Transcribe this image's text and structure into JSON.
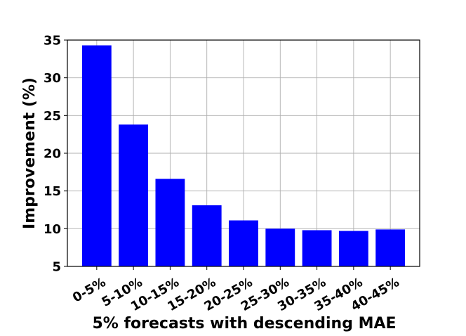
{
  "chart_data": {
    "type": "bar",
    "categories": [
      "0-5%",
      "5-10%",
      "10-15%",
      "15-20%",
      "20-25%",
      "25-30%",
      "30-35%",
      "35-40%",
      "40-45%"
    ],
    "values": [
      34.3,
      23.8,
      16.6,
      13.1,
      11.1,
      10.0,
      9.8,
      9.7,
      9.9
    ],
    "xlabel": "5% forecasts with descending MAE",
    "ylabel": "Improvement (%)",
    "ylim": [
      5,
      35
    ],
    "yticks": [
      "5",
      "10",
      "15",
      "20",
      "25",
      "30",
      "35"
    ],
    "grid": true,
    "bar_color": "#0000ff"
  }
}
